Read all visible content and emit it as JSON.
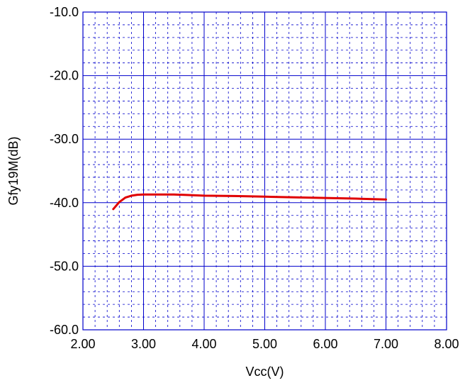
{
  "chart_data": {
    "type": "line",
    "title": "",
    "xlabel": "Vcc(V)",
    "ylabel": "Gfy19M(dB)",
    "xlim": [
      2.0,
      8.0
    ],
    "ylim": [
      -60.0,
      -10.0
    ],
    "x_ticks": [
      "2.00",
      "3.00",
      "4.00",
      "5.00",
      "6.00",
      "7.00",
      "8.00"
    ],
    "y_ticks": [
      "-10.0",
      "-20.0",
      "-30.0",
      "-40.0",
      "-50.0",
      "-60.0"
    ],
    "x_tick_values": [
      2,
      3,
      4,
      5,
      6,
      7,
      8
    ],
    "y_tick_values": [
      -10,
      -20,
      -30,
      -40,
      -50,
      -60
    ],
    "grid": "major solid, minor dashed",
    "colors": {
      "frame": "#0000cc",
      "grid": "#0000cc",
      "series": "#e00000"
    },
    "series": [
      {
        "x": [
          2.5,
          2.6,
          2.7,
          2.8,
          2.9,
          3.0,
          3.5,
          4.0,
          4.5,
          5.0,
          5.5,
          6.0,
          6.5,
          7.0
        ],
        "y": [
          -41.0,
          -39.9,
          -39.2,
          -38.9,
          -38.75,
          -38.7,
          -38.7,
          -38.9,
          -38.95,
          -39.05,
          -39.15,
          -39.25,
          -39.35,
          -39.5
        ]
      }
    ]
  }
}
